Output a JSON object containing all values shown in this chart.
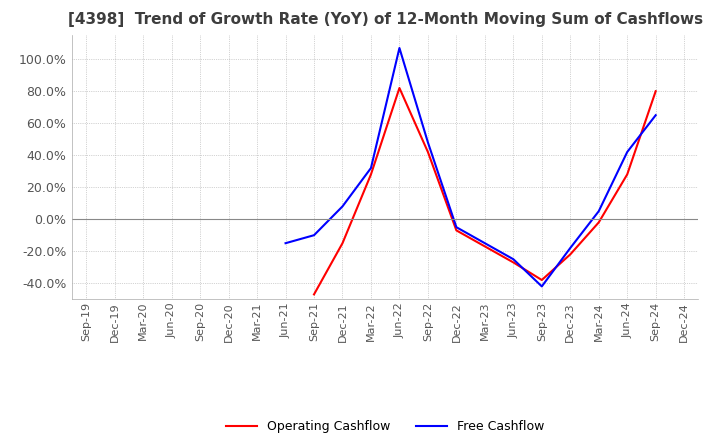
{
  "title": "[4398]  Trend of Growth Rate (YoY) of 12-Month Moving Sum of Cashflows",
  "title_color": "#3d3d3d",
  "background_color": "#ffffff",
  "grid_color": "#aaaaaa",
  "ylim": [
    -0.5,
    1.15
  ],
  "yticks": [
    -0.4,
    -0.2,
    0.0,
    0.2,
    0.4,
    0.6,
    0.8,
    1.0
  ],
  "x_labels": [
    "Sep-19",
    "Dec-19",
    "Mar-20",
    "Jun-20",
    "Sep-20",
    "Dec-20",
    "Mar-21",
    "Jun-21",
    "Sep-21",
    "Dec-21",
    "Mar-22",
    "Jun-22",
    "Sep-22",
    "Dec-22",
    "Mar-23",
    "Jun-23",
    "Sep-23",
    "Dec-23",
    "Mar-24",
    "Jun-24",
    "Sep-24",
    "Dec-24"
  ],
  "operating_cashflow": [
    null,
    null,
    null,
    null,
    null,
    null,
    null,
    null,
    -0.47,
    -0.15,
    0.28,
    0.82,
    0.42,
    -0.07,
    -0.17,
    -0.27,
    -0.38,
    -0.22,
    -0.02,
    0.28,
    0.8,
    null
  ],
  "free_cashflow": [
    null,
    null,
    null,
    null,
    null,
    null,
    null,
    -0.15,
    -0.1,
    0.08,
    0.32,
    1.07,
    0.48,
    -0.05,
    -0.15,
    -0.25,
    -0.42,
    -0.18,
    0.05,
    0.42,
    0.65,
    null
  ],
  "op_color": "#ff0000",
  "free_color": "#0000ff",
  "legend_labels": [
    "Operating Cashflow",
    "Free Cashflow"
  ],
  "line_width": 1.5
}
